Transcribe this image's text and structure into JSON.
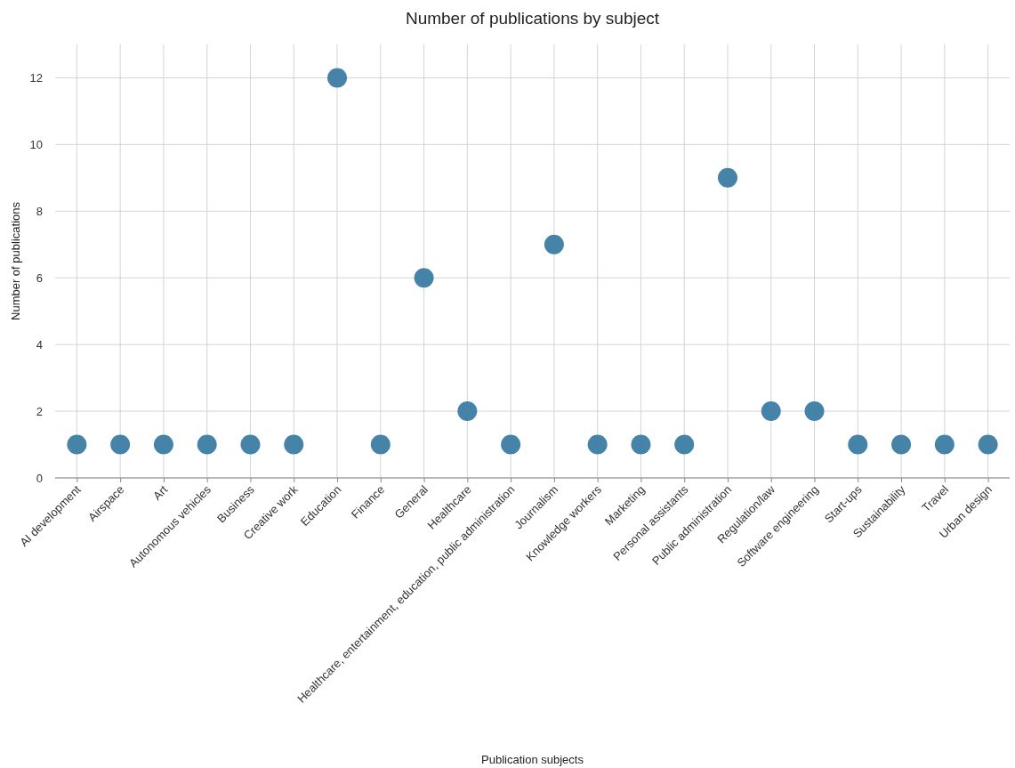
{
  "chart_data": {
    "type": "scatter",
    "title": "Number of publications by subject",
    "xlabel": "Publication subjects",
    "ylabel": "Number of publications",
    "categories": [
      "AI development",
      "Airspace",
      "Art",
      "Autonomous vehicles",
      "Business",
      "Creative work",
      "Education",
      "Finance",
      "General",
      "Healthcare",
      "Healthcare, entertainment, education, public administration",
      "Journalism",
      "Knowledge workers",
      "Marketing",
      "Personal assistants",
      "Public administration",
      "Regulation/law",
      "Software engineering",
      "Start-ups",
      "Sustainability",
      "Travel",
      "Urban design"
    ],
    "values": [
      1,
      1,
      1,
      1,
      1,
      1,
      12,
      1,
      6,
      2,
      1,
      7,
      1,
      1,
      1,
      9,
      2,
      2,
      1,
      1,
      1,
      1
    ],
    "color": "#3b7ca3",
    "marker": "circle",
    "ylim": [
      0,
      13
    ],
    "yticks": [
      0,
      2,
      4,
      6,
      8,
      10,
      12
    ],
    "grid": true
  }
}
